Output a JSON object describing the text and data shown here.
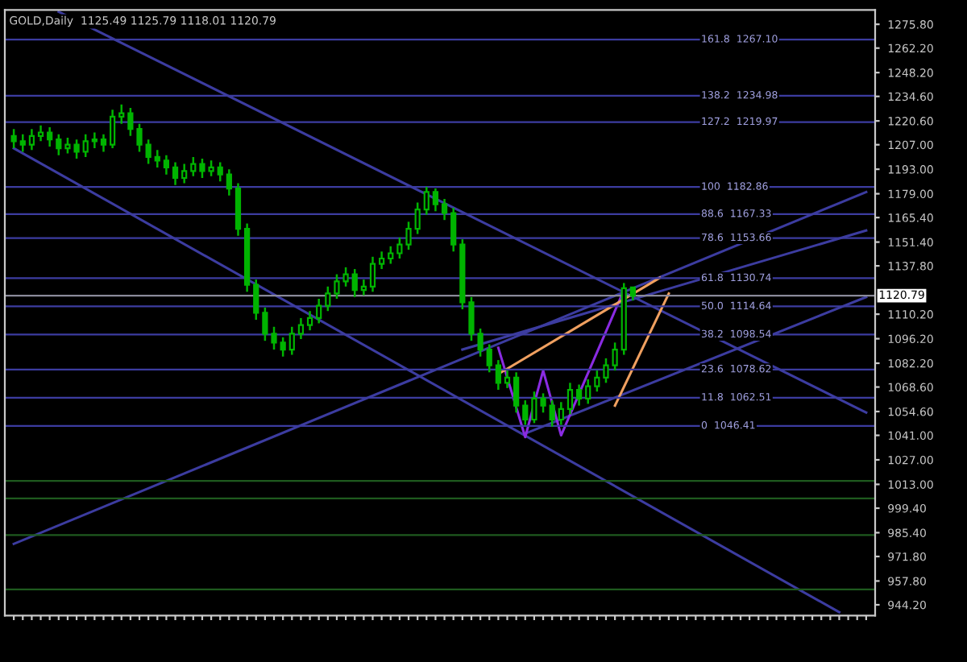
{
  "chart_data": {
    "type": "candlestick",
    "title": "GOLD,Daily  1125.49 1125.79 1118.01 1120.79",
    "color": "#00b400",
    "categories": [
      null,
      null,
      null,
      null,
      null,
      null,
      null,
      null,
      null,
      null,
      null,
      null,
      null,
      null,
      null,
      null,
      null,
      null,
      null,
      null,
      null,
      null,
      null,
      null,
      null,
      null,
      null,
      null,
      null,
      null,
      null,
      null,
      null,
      null,
      null,
      null,
      null,
      null,
      null,
      null,
      null,
      null,
      null,
      null,
      null,
      null,
      null,
      null,
      null,
      null,
      null,
      null,
      null,
      null,
      null,
      null,
      null,
      null,
      null,
      null,
      null,
      null,
      null,
      null,
      null,
      null,
      null,
      null,
      null,
      null,
      null,
      null,
      null,
      null,
      null,
      null,
      null,
      null,
      null,
      null,
      null,
      null,
      null,
      null,
      null,
      null,
      null,
      null,
      null,
      null,
      null,
      null,
      null,
      null,
      null,
      null
    ],
    "ohlc": [
      [
        1212,
        1216,
        1205,
        1209
      ],
      [
        1209,
        1213,
        1203,
        1207
      ],
      [
        1207,
        1216,
        1204,
        1212
      ],
      [
        1212,
        1218,
        1209,
        1214
      ],
      [
        1214,
        1217,
        1206,
        1210
      ],
      [
        1210,
        1213,
        1201,
        1205
      ],
      [
        1205,
        1211,
        1202,
        1207
      ],
      [
        1207,
        1210,
        1199,
        1203
      ],
      [
        1203,
        1213,
        1200,
        1209
      ],
      [
        1209,
        1214,
        1205,
        1210
      ],
      [
        1210,
        1213,
        1203,
        1207
      ],
      [
        1207,
        1227,
        1205,
        1223
      ],
      [
        1223,
        1230,
        1219,
        1225
      ],
      [
        1225,
        1228,
        1212,
        1216
      ],
      [
        1216,
        1219,
        1203,
        1207
      ],
      [
        1207,
        1210,
        1196,
        1200
      ],
      [
        1200,
        1204,
        1194,
        1198
      ],
      [
        1198,
        1201,
        1190,
        1194
      ],
      [
        1194,
        1197,
        1184,
        1188
      ],
      [
        1188,
        1196,
        1185,
        1192
      ],
      [
        1192,
        1200,
        1189,
        1196
      ],
      [
        1196,
        1199,
        1188,
        1192
      ],
      [
        1192,
        1198,
        1189,
        1194
      ],
      [
        1194,
        1197,
        1186,
        1190
      ],
      [
        1190,
        1193,
        1178,
        1182
      ],
      [
        1182,
        1185,
        1155,
        1159
      ],
      [
        1159,
        1162,
        1123,
        1127
      ],
      [
        1127,
        1130,
        1107,
        1111
      ],
      [
        1111,
        1114,
        1095,
        1099
      ],
      [
        1099,
        1103,
        1090,
        1094
      ],
      [
        1094,
        1097,
        1086,
        1090
      ],
      [
        1090,
        1103,
        1087,
        1099
      ],
      [
        1099,
        1108,
        1096,
        1104
      ],
      [
        1104,
        1112,
        1101,
        1108
      ],
      [
        1108,
        1119,
        1105,
        1115
      ],
      [
        1115,
        1126,
        1112,
        1122
      ],
      [
        1122,
        1133,
        1119,
        1129
      ],
      [
        1129,
        1137,
        1126,
        1133
      ],
      [
        1133,
        1136,
        1120,
        1124
      ],
      [
        1124,
        1130,
        1121,
        1126
      ],
      [
        1126,
        1143,
        1123,
        1139
      ],
      [
        1139,
        1146,
        1136,
        1142
      ],
      [
        1142,
        1149,
        1139,
        1145
      ],
      [
        1145,
        1154,
        1142,
        1150
      ],
      [
        1150,
        1163,
        1147,
        1159
      ],
      [
        1159,
        1174,
        1156,
        1170
      ],
      [
        1170,
        1183,
        1167,
        1180
      ],
      [
        1180,
        1182,
        1169,
        1173
      ],
      [
        1173,
        1176,
        1164,
        1168
      ],
      [
        1168,
        1171,
        1146,
        1150
      ],
      [
        1150,
        1153,
        1113,
        1117
      ],
      [
        1117,
        1120,
        1095,
        1099
      ],
      [
        1099,
        1102,
        1086,
        1090
      ],
      [
        1090,
        1093,
        1077,
        1081
      ],
      [
        1081,
        1084,
        1067,
        1071
      ],
      [
        1071,
        1078,
        1068,
        1074
      ],
      [
        1074,
        1077,
        1054,
        1058
      ],
      [
        1058,
        1061,
        1047,
        1050
      ],
      [
        1050,
        1066,
        1048,
        1062
      ],
      [
        1062,
        1065,
        1054,
        1058
      ],
      [
        1058,
        1061,
        1046,
        1050
      ],
      [
        1050,
        1060,
        1047,
        1056
      ],
      [
        1056,
        1071,
        1053,
        1067
      ],
      [
        1067,
        1070,
        1058,
        1062
      ],
      [
        1062,
        1073,
        1059,
        1069
      ],
      [
        1069,
        1078,
        1066,
        1074
      ],
      [
        1074,
        1085,
        1071,
        1081
      ],
      [
        1081,
        1094,
        1078,
        1090
      ],
      [
        1090,
        1128,
        1087,
        1125
      ],
      [
        1125.49,
        1125.79,
        1118.01,
        1120.79
      ],
      null,
      null,
      null,
      null,
      null,
      null,
      null,
      null,
      null,
      null,
      null,
      null,
      null,
      null,
      null,
      null,
      null,
      null,
      null,
      null,
      null,
      null,
      null,
      null,
      null,
      null
    ],
    "series": [
      {
        "type": "line",
        "color": "#3c3ca0",
        "values": [
          null,
          null,
          null,
          null,
          null,
          1283,
          null,
          null,
          null,
          null,
          null,
          null,
          null,
          null,
          null,
          null,
          null,
          null,
          null,
          null,
          null,
          null,
          null,
          null,
          null,
          null,
          null,
          null,
          null,
          null,
          null,
          null,
          null,
          null,
          null,
          null,
          null,
          null,
          null,
          null,
          null,
          null,
          null,
          null,
          null,
          null,
          null,
          null,
          null,
          null,
          null,
          null,
          null,
          null,
          null,
          null,
          null,
          null,
          null,
          null,
          null,
          null,
          null,
          null,
          null,
          null,
          null,
          null,
          null,
          null,
          null,
          null,
          null,
          null,
          null,
          null,
          null,
          null,
          null,
          null,
          null,
          null,
          null,
          null,
          null,
          null,
          null,
          null,
          null,
          null,
          null,
          null,
          null,
          null,
          null,
          1054
        ]
      },
      {
        "type": "line",
        "color": "#3c3ca0",
        "values": [
          1205,
          null,
          null,
          null,
          null,
          null,
          null,
          null,
          null,
          null,
          null,
          null,
          null,
          null,
          null,
          null,
          null,
          null,
          null,
          null,
          null,
          null,
          null,
          null,
          null,
          null,
          null,
          null,
          null,
          null,
          null,
          null,
          null,
          null,
          null,
          null,
          null,
          null,
          null,
          null,
          null,
          null,
          null,
          null,
          null,
          null,
          null,
          null,
          null,
          null,
          null,
          null,
          null,
          null,
          null,
          null,
          null,
          null,
          null,
          null,
          null,
          null,
          null,
          null,
          null,
          null,
          null,
          null,
          null,
          null,
          null,
          null,
          null,
          null,
          null,
          null,
          null,
          null,
          null,
          null,
          null,
          null,
          null,
          null,
          null,
          null,
          null,
          null,
          null,
          null,
          null,
          null,
          940,
          null,
          null,
          null
        ]
      },
      {
        "type": "line",
        "color": "#3c3ca0",
        "values": [
          979,
          null,
          null,
          null,
          null,
          null,
          null,
          null,
          null,
          null,
          null,
          null,
          null,
          null,
          null,
          null,
          null,
          null,
          null,
          null,
          null,
          null,
          null,
          null,
          null,
          null,
          null,
          null,
          null,
          null,
          null,
          null,
          null,
          null,
          null,
          null,
          null,
          null,
          null,
          null,
          null,
          null,
          null,
          null,
          null,
          null,
          null,
          null,
          null,
          null,
          null,
          null,
          null,
          null,
          null,
          null,
          null,
          null,
          null,
          null,
          null,
          null,
          null,
          null,
          null,
          null,
          null,
          null,
          null,
          null,
          null,
          null,
          null,
          null,
          null,
          null,
          null,
          null,
          null,
          null,
          null,
          null,
          null,
          null,
          null,
          null,
          null,
          null,
          null,
          null,
          null,
          null,
          null,
          null,
          null,
          1180
        ]
      },
      {
        "type": "line",
        "color": "#3c3ca0",
        "values": [
          null,
          null,
          null,
          null,
          null,
          null,
          null,
          null,
          null,
          null,
          null,
          null,
          null,
          null,
          null,
          null,
          null,
          null,
          null,
          null,
          null,
          null,
          null,
          null,
          null,
          null,
          null,
          null,
          null,
          null,
          null,
          null,
          null,
          null,
          null,
          null,
          null,
          null,
          null,
          null,
          null,
          null,
          null,
          null,
          null,
          null,
          null,
          null,
          null,
          null,
          null,
          null,
          null,
          null,
          null,
          null,
          null,
          1042,
          null,
          null,
          null,
          null,
          null,
          null,
          null,
          null,
          null,
          null,
          null,
          null,
          null,
          null,
          null,
          null,
          null,
          null,
          null,
          null,
          null,
          null,
          null,
          null,
          null,
          null,
          null,
          null,
          null,
          null,
          null,
          null,
          null,
          null,
          null,
          null,
          null,
          1120
        ]
      },
      {
        "type": "line",
        "color": "#3c3ca0",
        "values": [
          null,
          null,
          null,
          null,
          null,
          null,
          null,
          null,
          null,
          null,
          null,
          null,
          null,
          null,
          null,
          null,
          null,
          null,
          null,
          null,
          null,
          null,
          null,
          null,
          null,
          null,
          null,
          null,
          null,
          null,
          null,
          null,
          null,
          null,
          null,
          null,
          null,
          null,
          null,
          null,
          null,
          null,
          null,
          null,
          null,
          null,
          null,
          null,
          null,
          null,
          1090,
          null,
          null,
          null,
          null,
          null,
          null,
          null,
          null,
          null,
          null,
          null,
          null,
          null,
          null,
          null,
          null,
          null,
          null,
          null,
          null,
          null,
          null,
          null,
          null,
          null,
          null,
          null,
          null,
          null,
          null,
          null,
          null,
          null,
          null,
          null,
          null,
          null,
          null,
          null,
          null,
          null,
          null,
          null,
          null,
          1158
        ]
      },
      {
        "type": "line",
        "color": "#8a2be2",
        "values": [
          null,
          null,
          null,
          null,
          null,
          null,
          null,
          null,
          null,
          null,
          null,
          null,
          null,
          null,
          null,
          null,
          null,
          null,
          null,
          null,
          null,
          null,
          null,
          null,
          null,
          null,
          null,
          null,
          null,
          null,
          null,
          null,
          null,
          null,
          null,
          null,
          null,
          null,
          null,
          null,
          null,
          null,
          null,
          null,
          null,
          null,
          null,
          null,
          null,
          null,
          null,
          null,
          null,
          null,
          1091,
          null,
          null,
          1040,
          null,
          1078,
          null,
          1041,
          null,
          null,
          null,
          null,
          null,
          null,
          1124,
          null,
          null,
          null,
          null,
          null,
          null,
          null,
          null,
          null,
          null,
          null,
          null,
          null,
          null,
          null,
          null,
          null,
          null,
          null,
          null,
          null,
          null,
          null,
          null,
          null,
          null,
          null
        ]
      },
      {
        "type": "line",
        "color": "#f0a060",
        "values": [
          null,
          null,
          null,
          null,
          null,
          null,
          null,
          null,
          null,
          null,
          null,
          null,
          null,
          null,
          null,
          null,
          null,
          null,
          null,
          null,
          null,
          null,
          null,
          null,
          null,
          null,
          null,
          null,
          null,
          null,
          null,
          null,
          null,
          null,
          null,
          null,
          null,
          null,
          null,
          null,
          null,
          null,
          null,
          null,
          null,
          null,
          null,
          null,
          null,
          null,
          null,
          null,
          null,
          null,
          1076,
          null,
          null,
          null,
          null,
          null,
          null,
          null,
          null,
          null,
          null,
          null,
          null,
          null,
          null,
          null,
          null,
          null,
          1131,
          null,
          null,
          null,
          null,
          null,
          null,
          null,
          null,
          null,
          null,
          null,
          null,
          null,
          null,
          null,
          null,
          null,
          null,
          null,
          null,
          null,
          null,
          null
        ]
      },
      {
        "type": "line",
        "color": "#f0a060",
        "values": [
          null,
          null,
          null,
          null,
          null,
          null,
          null,
          null,
          null,
          null,
          null,
          null,
          null,
          null,
          null,
          null,
          null,
          null,
          null,
          null,
          null,
          null,
          null,
          null,
          null,
          null,
          null,
          null,
          null,
          null,
          null,
          null,
          null,
          null,
          null,
          null,
          null,
          null,
          null,
          null,
          null,
          null,
          null,
          null,
          null,
          null,
          null,
          null,
          null,
          null,
          null,
          null,
          null,
          null,
          null,
          null,
          null,
          null,
          null,
          null,
          null,
          null,
          null,
          null,
          null,
          null,
          null,
          1058,
          null,
          null,
          null,
          null,
          null,
          1122,
          null,
          null,
          null,
          null,
          null,
          null,
          null,
          null,
          null,
          null,
          null,
          null,
          null,
          null,
          null,
          null,
          null,
          null,
          null,
          null,
          null,
          null
        ]
      }
    ],
    "ref_lines": [
      {
        "axis": "y",
        "value": 1267.1,
        "label": "161.8  1267.10",
        "color": "#3c3ca0"
      },
      {
        "axis": "y",
        "value": 1234.98,
        "label": "138.2  1234.98",
        "color": "#3c3ca0"
      },
      {
        "axis": "y",
        "value": 1219.97,
        "label": "127.2  1219.97",
        "color": "#3c3ca0"
      },
      {
        "axis": "y",
        "value": 1182.86,
        "label": "100  1182.86",
        "color": "#3c3ca0"
      },
      {
        "axis": "y",
        "value": 1167.33,
        "label": "88.6  1167.33",
        "color": "#3c3ca0"
      },
      {
        "axis": "y",
        "value": 1153.66,
        "label": "78.6  1153.66",
        "color": "#3c3ca0"
      },
      {
        "axis": "y",
        "value": 1130.74,
        "label": "61.8  1130.74",
        "color": "#3c3ca0"
      },
      {
        "axis": "y",
        "value": 1114.64,
        "label": "50.0  1114.64",
        "color": "#3c3ca0"
      },
      {
        "axis": "y",
        "value": 1098.54,
        "label": "38.2  1098.54",
        "color": "#3c3ca0"
      },
      {
        "axis": "y",
        "value": 1078.62,
        "label": "23.6  1078.62",
        "color": "#3c3ca0"
      },
      {
        "axis": "y",
        "value": 1062.51,
        "label": "11.8  1062.51",
        "color": "#3c3ca0"
      },
      {
        "axis": "y",
        "value": 1046.41,
        "label": "0  1046.41",
        "color": "#3c3ca0"
      },
      {
        "axis": "y",
        "value": 1015,
        "color": "#1e5a1e"
      },
      {
        "axis": "y",
        "value": 1005,
        "color": "#1e5a1e"
      },
      {
        "axis": "y",
        "value": 984,
        "color": "#1e5a1e"
      },
      {
        "axis": "y",
        "value": 953,
        "color": "#1e5a1e"
      },
      {
        "axis": "y",
        "value": 1120.79,
        "label": "1120.79",
        "color": "#8a8a9a"
      }
    ],
    "ylim": [
      938,
      1284
    ],
    "yticks": [
      {
        "value": 944.2,
        "label": "944.20"
      },
      {
        "value": 957.8,
        "label": "957.80"
      },
      {
        "value": 971.8,
        "label": "971.80"
      },
      {
        "value": 985.4,
        "label": "985.40"
      },
      {
        "value": 999.4,
        "label": "999.40"
      },
      {
        "value": 1013.0,
        "label": "1013.00"
      },
      {
        "value": 1027.0,
        "label": "1027.00"
      },
      {
        "value": 1041.0,
        "label": "1041.00"
      },
      {
        "value": 1054.6,
        "label": "1054.60"
      },
      {
        "value": 1068.6,
        "label": "1068.60"
      },
      {
        "value": 1082.2,
        "label": "1082.20"
      },
      {
        "value": 1096.2,
        "label": "1096.20"
      },
      {
        "value": 1110.2,
        "label": "1110.20"
      },
      {
        "value": 1137.8,
        "label": "1137.80"
      },
      {
        "value": 1151.4,
        "label": "1151.40"
      },
      {
        "value": 1165.4,
        "label": "1165.40"
      },
      {
        "value": 1179.0,
        "label": "1179.00"
      },
      {
        "value": 1193.0,
        "label": "1193.00"
      },
      {
        "value": 1207.0,
        "label": "1207.00"
      },
      {
        "value": 1220.6,
        "label": "1220.60"
      },
      {
        "value": 1234.6,
        "label": "1234.60"
      },
      {
        "value": 1248.2,
        "label": "1248.20"
      },
      {
        "value": 1262.2,
        "label": "1262.20"
      },
      {
        "value": 1275.8,
        "label": "1275.80"
      }
    ],
    "tick_labels": "y",
    "grid": false,
    "legend": false
  }
}
